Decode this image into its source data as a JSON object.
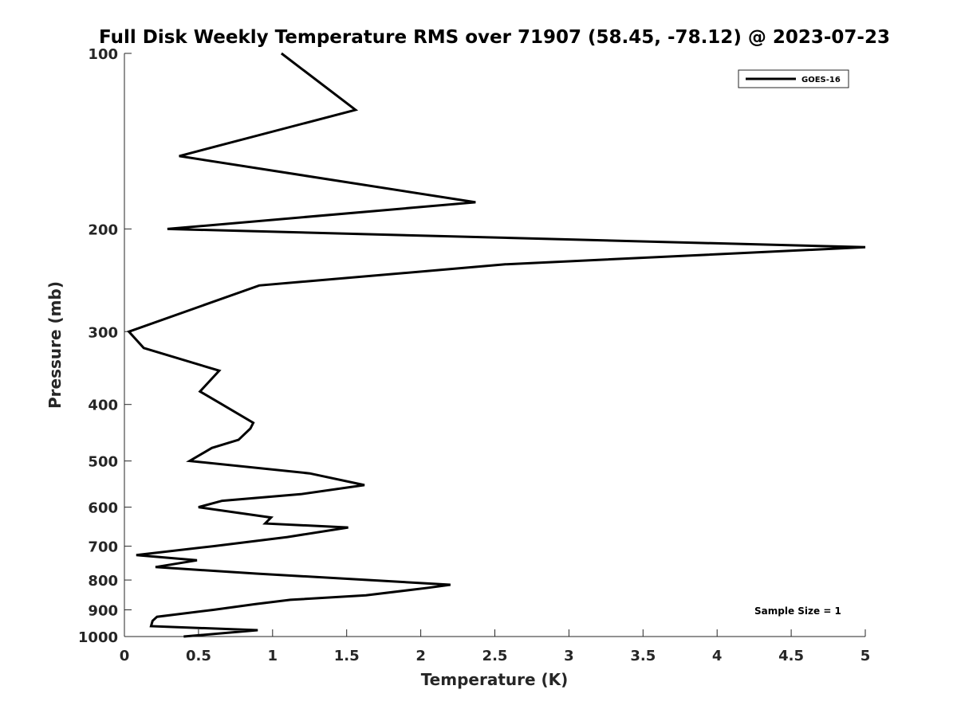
{
  "chart_data": {
    "type": "line",
    "title": "Full Disk Weekly Temperature RMS over 71907 (58.45, -78.12) @ 2023-07-23",
    "xlabel": "Temperature (K)",
    "ylabel": "Pressure (mb)",
    "xlim": [
      0,
      5
    ],
    "ylim": [
      100,
      1000
    ],
    "y_scale": "log",
    "y_reversed": true,
    "x_ticks": [
      "0",
      "0.5",
      "1",
      "1.5",
      "2",
      "2.5",
      "3",
      "3.5",
      "4",
      "4.5",
      "5"
    ],
    "y_ticks": [
      "100",
      "200",
      "300",
      "400",
      "500",
      "600",
      "700",
      "800",
      "900",
      "1000"
    ],
    "grid": false,
    "legend_position": "top-right",
    "annotation": "Sample Size = 1",
    "series": [
      {
        "name": "GOES-16",
        "color": "#000000",
        "points": [
          [
            1.06,
            100
          ],
          [
            1.56,
            125
          ],
          [
            0.37,
            150
          ],
          [
            2.37,
            180
          ],
          [
            0.29,
            200
          ],
          [
            5.0,
            215
          ],
          [
            2.57,
            230
          ],
          [
            0.91,
            250
          ],
          [
            0.03,
            300
          ],
          [
            0.13,
            320
          ],
          [
            0.64,
            350
          ],
          [
            0.51,
            380
          ],
          [
            0.66,
            400
          ],
          [
            0.87,
            430
          ],
          [
            0.85,
            440
          ],
          [
            0.77,
            460
          ],
          [
            0.59,
            475
          ],
          [
            0.44,
            500
          ],
          [
            1.25,
            525
          ],
          [
            1.62,
            550
          ],
          [
            1.19,
            570
          ],
          [
            0.66,
            585
          ],
          [
            0.5,
            600
          ],
          [
            0.99,
            625
          ],
          [
            0.95,
            640
          ],
          [
            1.51,
            650
          ],
          [
            1.1,
            675
          ],
          [
            0.6,
            700
          ],
          [
            0.08,
            725
          ],
          [
            0.49,
            740
          ],
          [
            0.21,
            760
          ],
          [
            0.89,
            780
          ],
          [
            2.2,
            815
          ],
          [
            2.05,
            825
          ],
          [
            1.63,
            850
          ],
          [
            1.12,
            865
          ],
          [
            0.88,
            880
          ],
          [
            0.6,
            900
          ],
          [
            0.22,
            925
          ],
          [
            0.19,
            940
          ],
          [
            0.18,
            960
          ],
          [
            0.9,
            975
          ],
          [
            0.4,
            1000
          ]
        ]
      }
    ]
  }
}
